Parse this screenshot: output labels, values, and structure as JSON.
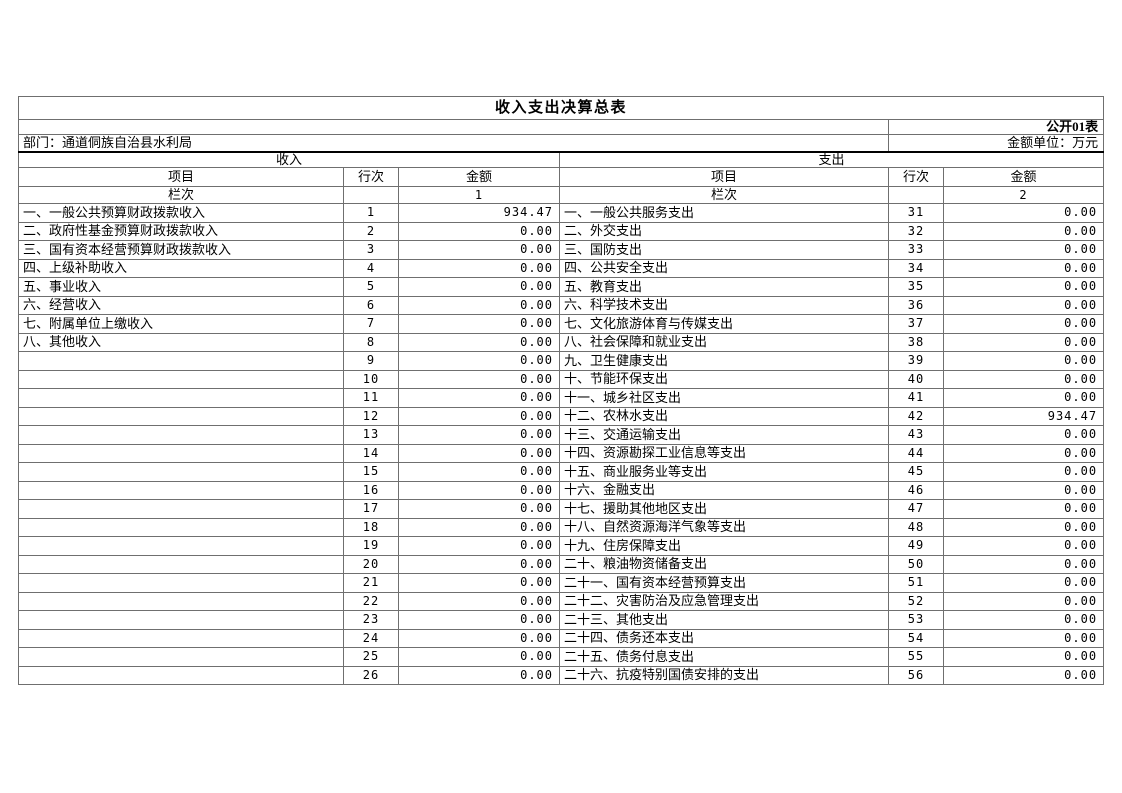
{
  "table": {
    "title": "收入支出决算总表",
    "doc_label": "公开01表",
    "department": "部门：通道侗族自治县水利局",
    "unit_label": "金额单位：万元",
    "grid_color": "#6f6f6f",
    "thick_rule_color": "#000000",
    "income": {
      "section_title": "收入",
      "columns": {
        "item": "项目",
        "line": "行次",
        "amount": "金额"
      },
      "lanci_label": "栏次",
      "lanci_col_no": "1",
      "rows": [
        {
          "label": "一、一般公共预算财政拨款收入",
          "line": "1",
          "amount": "934.47"
        },
        {
          "label": "二、政府性基金预算财政拨款收入",
          "line": "2",
          "amount": "0.00"
        },
        {
          "label": "三、国有资本经营预算财政拨款收入",
          "line": "3",
          "amount": "0.00"
        },
        {
          "label": "四、上级补助收入",
          "line": "4",
          "amount": "0.00"
        },
        {
          "label": "五、事业收入",
          "line": "5",
          "amount": "0.00"
        },
        {
          "label": "六、经营收入",
          "line": "6",
          "amount": "0.00"
        },
        {
          "label": "七、附属单位上缴收入",
          "line": "7",
          "amount": "0.00"
        },
        {
          "label": "八、其他收入",
          "line": "8",
          "amount": "0.00"
        },
        {
          "label": "",
          "line": "9",
          "amount": "0.00"
        },
        {
          "label": "",
          "line": "10",
          "amount": "0.00"
        },
        {
          "label": "",
          "line": "11",
          "amount": "0.00"
        },
        {
          "label": "",
          "line": "12",
          "amount": "0.00"
        },
        {
          "label": "",
          "line": "13",
          "amount": "0.00"
        },
        {
          "label": "",
          "line": "14",
          "amount": "0.00"
        },
        {
          "label": "",
          "line": "15",
          "amount": "0.00"
        },
        {
          "label": "",
          "line": "16",
          "amount": "0.00"
        },
        {
          "label": "",
          "line": "17",
          "amount": "0.00"
        },
        {
          "label": "",
          "line": "18",
          "amount": "0.00"
        },
        {
          "label": "",
          "line": "19",
          "amount": "0.00"
        },
        {
          "label": "",
          "line": "20",
          "amount": "0.00"
        },
        {
          "label": "",
          "line": "21",
          "amount": "0.00"
        },
        {
          "label": "",
          "line": "22",
          "amount": "0.00"
        },
        {
          "label": "",
          "line": "23",
          "amount": "0.00"
        },
        {
          "label": "",
          "line": "24",
          "amount": "0.00"
        },
        {
          "label": "",
          "line": "25",
          "amount": "0.00"
        },
        {
          "label": "",
          "line": "26",
          "amount": "0.00"
        }
      ]
    },
    "expense": {
      "section_title": "支出",
      "columns": {
        "item": "项目",
        "line": "行次",
        "amount": "金额"
      },
      "lanci_label": "栏次",
      "lanci_col_no": "2",
      "rows": [
        {
          "label": "一、一般公共服务支出",
          "line": "31",
          "amount": "0.00"
        },
        {
          "label": "二、外交支出",
          "line": "32",
          "amount": "0.00"
        },
        {
          "label": "三、国防支出",
          "line": "33",
          "amount": "0.00"
        },
        {
          "label": "四、公共安全支出",
          "line": "34",
          "amount": "0.00"
        },
        {
          "label": "五、教育支出",
          "line": "35",
          "amount": "0.00"
        },
        {
          "label": "六、科学技术支出",
          "line": "36",
          "amount": "0.00"
        },
        {
          "label": "七、文化旅游体育与传媒支出",
          "line": "37",
          "amount": "0.00"
        },
        {
          "label": "八、社会保障和就业支出",
          "line": "38",
          "amount": "0.00"
        },
        {
          "label": "九、卫生健康支出",
          "line": "39",
          "amount": "0.00"
        },
        {
          "label": "十、节能环保支出",
          "line": "40",
          "amount": "0.00"
        },
        {
          "label": "十一、城乡社区支出",
          "line": "41",
          "amount": "0.00"
        },
        {
          "label": "十二、农林水支出",
          "line": "42",
          "amount": "934.47"
        },
        {
          "label": "十三、交通运输支出",
          "line": "43",
          "amount": "0.00"
        },
        {
          "label": "十四、资源勘探工业信息等支出",
          "line": "44",
          "amount": "0.00"
        },
        {
          "label": "十五、商业服务业等支出",
          "line": "45",
          "amount": "0.00"
        },
        {
          "label": "十六、金融支出",
          "line": "46",
          "amount": "0.00"
        },
        {
          "label": "十七、援助其他地区支出",
          "line": "47",
          "amount": "0.00"
        },
        {
          "label": "十八、自然资源海洋气象等支出",
          "line": "48",
          "amount": "0.00"
        },
        {
          "label": "十九、住房保障支出",
          "line": "49",
          "amount": "0.00"
        },
        {
          "label": "二十、粮油物资储备支出",
          "line": "50",
          "amount": "0.00"
        },
        {
          "label": "二十一、国有资本经营预算支出",
          "line": "51",
          "amount": "0.00"
        },
        {
          "label": "二十二、灾害防治及应急管理支出",
          "line": "52",
          "amount": "0.00"
        },
        {
          "label": "二十三、其他支出",
          "line": "53",
          "amount": "0.00"
        },
        {
          "label": "二十四、债务还本支出",
          "line": "54",
          "amount": "0.00"
        },
        {
          "label": "二十五、债务付息支出",
          "line": "55",
          "amount": "0.00"
        },
        {
          "label": "二十六、抗疫特别国债安排的支出",
          "line": "56",
          "amount": "0.00"
        }
      ]
    }
  }
}
